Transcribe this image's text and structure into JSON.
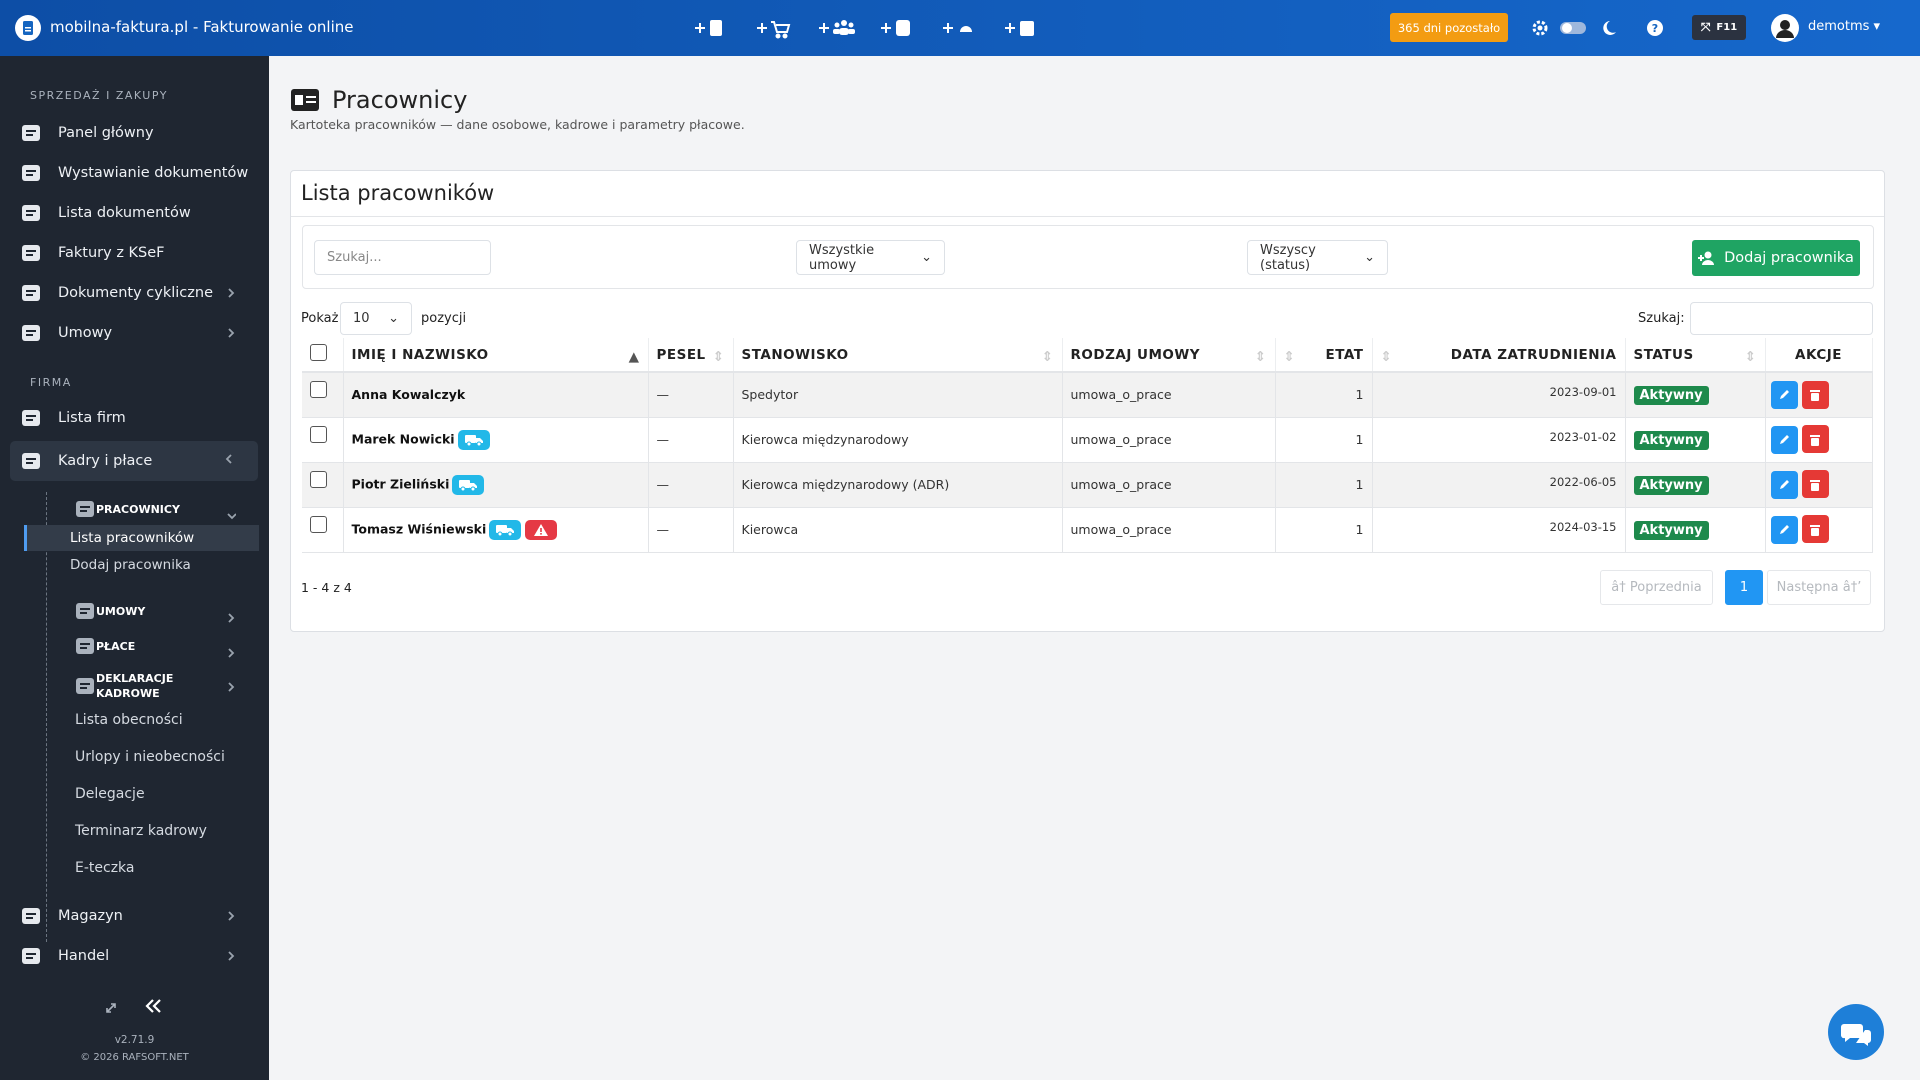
{
  "topbar": {
    "brand": "mobilna-faktura.pl - Fakturowanie online",
    "trial": "365 dni pozostało",
    "f11": "F11",
    "user": "demotms"
  },
  "sidebar": {
    "section_sales": "SPRZEDAŻ I ZAKUPY",
    "menu_sales": [
      "Panel główny",
      "Wystawianie dokumentów",
      "Lista dokumentów",
      "Faktury z KSeF",
      "Dokumenty cykliczne",
      "Umowy"
    ],
    "section_company": "FIRMA",
    "menu_company": [
      "Lista firm",
      "Kadry i płace"
    ],
    "group_employees": "PRACOWNICY",
    "employees_links": [
      "Lista pracowników",
      "Dodaj pracownika"
    ],
    "groups": [
      "UMOWY",
      "PŁACE",
      "DEKLARACJE KADROWE"
    ],
    "hr_links": [
      "Lista obecności",
      "Urlopy i nieobecności",
      "Delegacje",
      "Terminarz kadrowy",
      "E-teczka"
    ],
    "menu_bottom": [
      "Magazyn",
      "Handel"
    ],
    "version": "v2.71.9",
    "copyright": "© 2026 RAFSOFT.NET"
  },
  "page": {
    "title": "Pracownicy",
    "subtitle": "Kartoteka pracowników — dane osobowe, kadrowe i parametry płacowe."
  },
  "card": {
    "title": "Lista pracowników",
    "search_placeholder": "Szukaj...",
    "contract_filter": "Wszystkie umowy",
    "status_filter": "Wszyscy (status)",
    "add_button": "Dodaj pracownika",
    "show": "Pokaż",
    "page_length": "10",
    "entries": "pozycji",
    "search_label": "Szukaj:"
  },
  "table": {
    "columns": [
      "IMIĘ I NAZWISKO",
      "PESEL",
      "STANOWISKO",
      "RODZAJ UMOWY",
      "ETAT",
      "DATA ZATRUDNIENIA",
      "STATUS",
      "AKCJE"
    ],
    "rows": [
      [
        "Anna Kowalczyk",
        "—",
        "Spedytor",
        "umowa_o_prace",
        1,
        "2023-09-01",
        "Aktywny"
      ],
      [
        "Marek Nowicki",
        "—",
        "Kierowca międzynarodowy",
        "umowa_o_prace",
        1,
        "2023-01-02",
        "Aktywny"
      ],
      [
        "Piotr Zieliński",
        "—",
        "Kierowca międzynarodowy (ADR)",
        "umowa_o_prace",
        1,
        "2022-06-05",
        "Aktywny"
      ],
      [
        "Tomasz Wiśniewski",
        "—",
        "Kierowca",
        "umowa_o_prace",
        1,
        "2024-03-15",
        "Aktywny"
      ]
    ]
  },
  "pagination": {
    "info": "1 - 4 z 4",
    "prev": "â† Poprzednia",
    "page": "1",
    "next": "Następna â†’"
  }
}
